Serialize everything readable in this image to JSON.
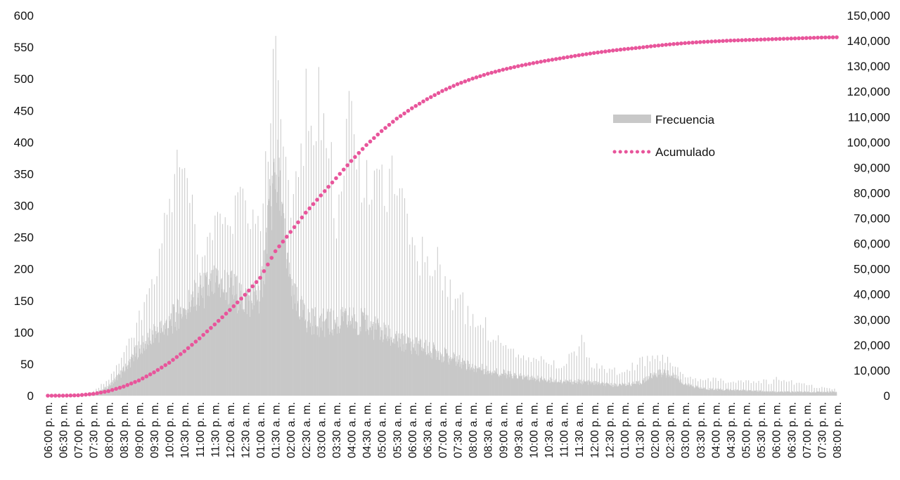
{
  "chart_data": {
    "type": "bar",
    "title": "",
    "xlabel": "",
    "ylabel": "",
    "grid": false,
    "legend_placement": "right",
    "x_tick_labels": [
      "06:00 p. m.",
      "06:30 p. m.",
      "07:00 p. m.",
      "07:30 p. m.",
      "08:00 p. m.",
      "08:30 p. m.",
      "09:00 p. m.",
      "09:30 p. m.",
      "10:00 p. m.",
      "10:30 p. m.",
      "11:00 p. m.",
      "11:30 p. m.",
      "12:00 a. m.",
      "12:30 a. m.",
      "01:00 a. m.",
      "01:30 a. m.",
      "02:00 a. m.",
      "02:30 a. m.",
      "03:00 a. m.",
      "03:30 a. m.",
      "04:00 a. m.",
      "04:30 a. m.",
      "05:00 a. m.",
      "05:30 a. m.",
      "06:00 a. m.",
      "06:30 a. m.",
      "07:00 a. m.",
      "07:30 a. m.",
      "08:00 a. m.",
      "08:30 a. m.",
      "09:00 a. m.",
      "09:30 a. m.",
      "10:00 a. m.",
      "10:30 a. m.",
      "11:00 a. m.",
      "11:30 a. m.",
      "12:00 p. m.",
      "12:30 p. m.",
      "01:00 p. m.",
      "01:30 p. m.",
      "02:00 p. m.",
      "02:30 p. m.",
      "03:00 p. m.",
      "03:30 p. m.",
      "04:00 p. m.",
      "04:30 p. m.",
      "05:00 p. m.",
      "05:30 p. m.",
      "06:00 p. m.",
      "06:30 p. m.",
      "07:00 p. m.",
      "07:30 p. m.",
      "08:00 p. m."
    ],
    "y_left": {
      "ticks": [
        "0",
        "50",
        "100",
        "150",
        "200",
        "250",
        "300",
        "350",
        "400",
        "450",
        "500",
        "550",
        "600"
      ],
      "ylim": [
        0,
        600
      ]
    },
    "y_right": {
      "ticks": [
        "0",
        "10,000",
        "20,000",
        "30,000",
        "40,000",
        "50,000",
        "60,000",
        "70,000",
        "80,000",
        "90,000",
        "100,000",
        "110,000",
        "120,000",
        "130,000",
        "140,000",
        "150,000"
      ],
      "ylim": [
        0,
        150000
      ]
    },
    "series": [
      {
        "name": "Frecuencia",
        "axis": "left",
        "style": "bar",
        "color": "#c8c8c8",
        "base": [
          0,
          0,
          0,
          2,
          15,
          40,
          75,
          95,
          115,
          140,
          160,
          175,
          170,
          150,
          160,
          370,
          160,
          120,
          115,
          115,
          120,
          115,
          100,
          85,
          80,
          75,
          65,
          55,
          45,
          40,
          35,
          30,
          27,
          25,
          22,
          22,
          20,
          17,
          17,
          20,
          35,
          35,
          18,
          12,
          10,
          9,
          8,
          7,
          6,
          6,
          6,
          6,
          6
        ],
        "peak": [
          0,
          0,
          1,
          8,
          30,
          70,
          135,
          215,
          345,
          440,
          215,
          290,
          305,
          350,
          300,
          598,
          300,
          530,
          520,
          345,
          525,
          410,
          395,
          375,
          265,
          272,
          235,
          175,
          145,
          120,
          100,
          75,
          65,
          60,
          50,
          105,
          55,
          45,
          45,
          60,
          70,
          60,
          35,
          30,
          30,
          25,
          25,
          25,
          30,
          25,
          20,
          15,
          12
        ]
      },
      {
        "name": "Acumulado",
        "axis": "right",
        "style": "dotted-line",
        "color": "#e8559b",
        "values": [
          0,
          10,
          150,
          700,
          1800,
          3600,
          6000,
          9200,
          13000,
          17500,
          22600,
          28100,
          33800,
          39800,
          46500,
          57000,
          64600,
          72200,
          79000,
          85800,
          92600,
          98900,
          104400,
          109300,
          113400,
          117000,
          120200,
          122900,
          125100,
          127000,
          128600,
          130000,
          131200,
          132300,
          133300,
          134300,
          135200,
          136000,
          136700,
          137300,
          138000,
          138600,
          139100,
          139500,
          139800,
          140100,
          140300,
          140500,
          140700,
          140900,
          141100,
          141300,
          141400
        ]
      }
    ]
  }
}
